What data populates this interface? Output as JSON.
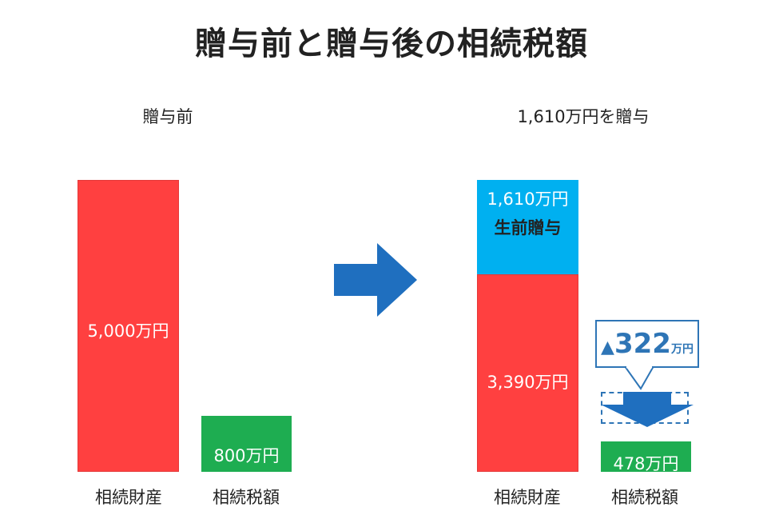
{
  "title": "贈与前と贈与後の相続税額",
  "panels": {
    "before": {
      "heading": "贈与前"
    },
    "after": {
      "heading": "1,610万円を贈与"
    }
  },
  "callout": {
    "marker": "▲",
    "value": "322",
    "unit": "万円"
  },
  "colors": {
    "estate": "#ff4040",
    "tax": "#1ead51",
    "gift": "#00b0f0",
    "arrow": "#1f6fbf"
  },
  "chart_data": [
    {
      "type": "bar",
      "title": "贈与前",
      "categories": [
        "相続財産",
        "相続税額"
      ],
      "values": [
        5000,
        800
      ],
      "value_labels": [
        "5,000万円",
        "800万円"
      ],
      "unit": "万円"
    },
    {
      "type": "bar",
      "title": "1,610万円を贈与",
      "categories": [
        "相続財産",
        "相続税額"
      ],
      "series": [
        {
          "name": "",
          "values": [
            3390,
            478
          ],
          "labels": [
            "3,390万円",
            "478万円"
          ]
        },
        {
          "name": "生前贈与",
          "values": [
            1610,
            0
          ],
          "labels": [
            "1,610万円",
            ""
          ]
        }
      ],
      "annotation": "▲322万円",
      "unit": "万円"
    }
  ]
}
